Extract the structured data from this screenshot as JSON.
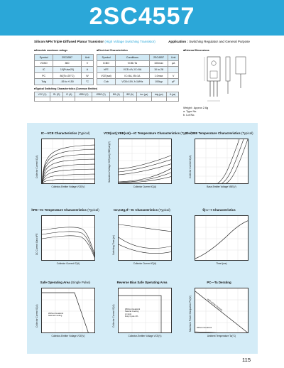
{
  "header": {
    "part_number": "2SC4557",
    "description_prefix": "Silicon NPN Triple Diffused Planar Transistor",
    "description_note": "(High Voltage Switching Transistor)",
    "application_label": "Application :",
    "application_value": "Switching Regulator and General Purpose"
  },
  "sections": {
    "abs_max": "Absolute maximum ratings",
    "electrical": "Electrical Characteristics",
    "external": "External Dimensions",
    "typical_switching": "Typical Switching Characteristics (Common Emitter)"
  },
  "abs_max_table": {
    "headers": [
      "Symbol",
      "2SC4557",
      "Unit"
    ],
    "rows": [
      [
        "VCBO",
        "800",
        "V"
      ],
      [
        "IC",
        "10(Pulse20)",
        "A"
      ],
      [
        "PC",
        "80(Tc=25°C)",
        "W"
      ],
      [
        "Tstg",
        "-55 to +150",
        "°C"
      ]
    ]
  },
  "elec_table": {
    "headers": [
      "Symbol",
      "Conditions",
      "2SC4557",
      "Unit"
    ],
    "rows": [
      [
        "ICBO",
        "VCB=Ta",
        "100max",
        "μA"
      ],
      [
        "hFE",
        "VCE=4V, IC=5A",
        "10 to 28",
        ""
      ],
      [
        "VCE(sat)",
        "IC=5A, IB=1A",
        "1.0max",
        "V"
      ],
      [
        "Cob",
        "VCB=10V, f=1MHz",
        "100typ",
        "pF"
      ]
    ]
  },
  "switching_table": {
    "headers": [
      "VCC (V)",
      "RL (Ω)",
      "IC (A)",
      "VBB1 (V)",
      "VBB2 (V)",
      "IB1 (A)",
      "IB2 (A)",
      "ton (μs)",
      "tstg (μs)",
      "tf (μs)"
    ],
    "values": [
      "",
      "",
      "",
      "",
      "",
      "",
      "",
      "",
      "",
      ""
    ]
  },
  "weight": {
    "line1": "Weight : Approx 2.6g",
    "line2": "a. Type No.",
    "line3": "b. Lot No."
  },
  "charts": {
    "c1": {
      "title_main": "IC—VCE Characteristics",
      "title_typ": "(Typical)",
      "xlabel": "Collector-Emitter Voltage VCE(V)",
      "ylabel": "Collector Current IC(A)"
    },
    "c2": {
      "title_main": "VCE(sat),VBE(sat)—IC Temperature Characteristics",
      "title_typ": "(Typical)",
      "xlabel": "Collector Current IC(A)",
      "ylabel": "Saturation Voltage VCE(sat),VBE(sat)(V)"
    },
    "c3": {
      "title_main": "IC—VBE Temperature Characteristics",
      "title_typ": "(Typical)",
      "xlabel": "Base-Emitter Voltage VBE(V)",
      "ylabel": "Collector Current IC(A)"
    },
    "c4": {
      "title_main": "hFE—IC Temperature Characteristics",
      "title_typ": "(Typical)",
      "xlabel": "Collector Current IC(A)",
      "ylabel": "DC Current Gain hFE"
    },
    "c5": {
      "title_main": "ton,tstg,tf—IC Characteristics",
      "title_typ": "(Typical)",
      "xlabel": "Collector Current IC(A)",
      "ylabel": "Switching Time (μs)"
    },
    "c6": {
      "title_main": "θj-c—t Characteristics",
      "title_typ": "",
      "xlabel": "Time t(ms)",
      "ylabel": ""
    },
    "c7": {
      "title_main": "Safe Operating Area",
      "title_typ": "(Single Pulse)",
      "xlabel": "Collector-Emitter Voltage VCE(V)",
      "ylabel": "Collector Current IC(A)",
      "note": [
        "Without Heatsink",
        "Natural Cooling"
      ]
    },
    "c8": {
      "title_main": "Reverse Bias Safe Operating Area",
      "title_typ": "",
      "xlabel": "Collector-Emitter Voltage VCE(V)",
      "ylabel": "Collector Current IC(A)",
      "note": [
        "Without Heatsink",
        "Natural Cooling",
        "L=1mH",
        "Duty Cycle 1%"
      ]
    },
    "c9": {
      "title_main": "PC—Ta Derating",
      "title_typ": "",
      "xlabel": "Ambient Temperature Ta(°C)",
      "ylabel": "Maximum Power Dissipation PC(W)",
      "note1": "With Infinite Heatsink",
      "note2": "Without Heatsink"
    }
  },
  "page_number": "115",
  "colors": {
    "accent": "#2ba7d8",
    "panel": "#d4ecf7",
    "table_head": "#cfe8f4"
  }
}
